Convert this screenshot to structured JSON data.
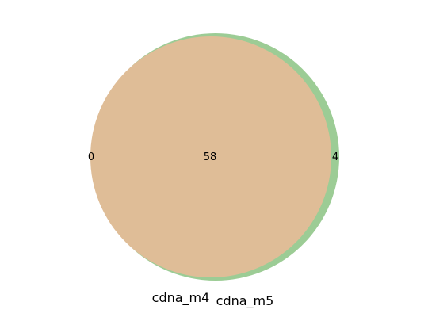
{
  "diagram": {
    "type": "venn2",
    "sets": [
      {
        "name": "cdna_m4",
        "color": "#e8b896"
      },
      {
        "name": "cdna_m5",
        "color": "#9ccc95"
      }
    ],
    "overlap_color": "#dfbd97",
    "regions": {
      "only_cdna_m4": "0",
      "both": "58",
      "only_cdna_m5": "4"
    }
  }
}
